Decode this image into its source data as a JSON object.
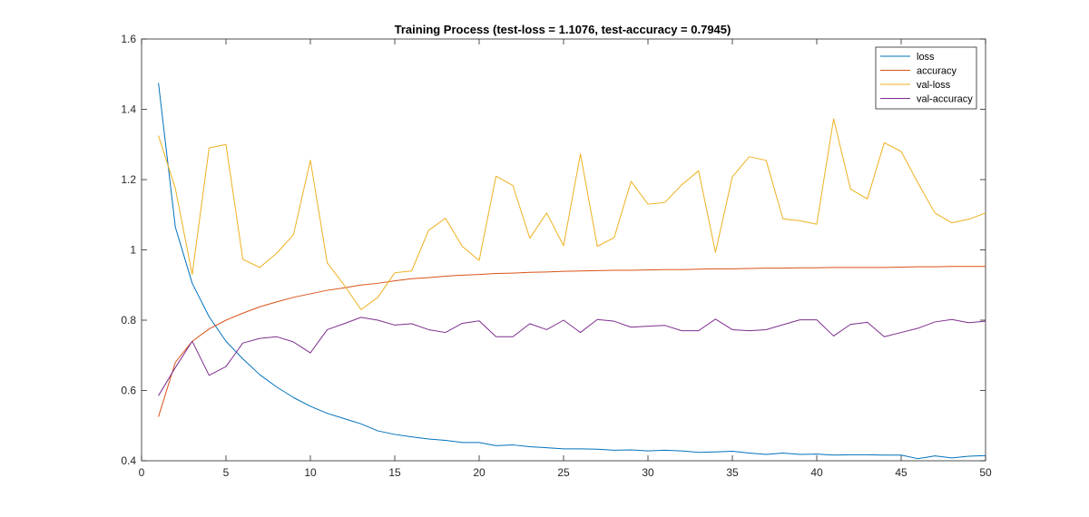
{
  "chart_data": {
    "type": "line",
    "title": "Training Process (test-loss = 1.1076, test-accuracy = 0.7945)",
    "xlabel": "",
    "ylabel": "",
    "xlim": [
      0,
      50
    ],
    "ylim": [
      0.4,
      1.6
    ],
    "xticks": [
      0,
      5,
      10,
      15,
      20,
      25,
      30,
      35,
      40,
      45,
      50
    ],
    "yticks": [
      0.4,
      0.6,
      0.8,
      1.0,
      1.2,
      1.4,
      1.6
    ],
    "xtick_labels": [
      "0",
      "5",
      "10",
      "15",
      "20",
      "25",
      "30",
      "35",
      "40",
      "45",
      "50"
    ],
    "ytick_labels": [
      "0.4",
      "0.6",
      "0.8",
      "1",
      "1.2",
      "1.4",
      "1.6"
    ],
    "grid": false,
    "legend_position": "top-right",
    "x": [
      1,
      2,
      3,
      4,
      5,
      6,
      7,
      8,
      9,
      10,
      11,
      12,
      13,
      14,
      15,
      16,
      17,
      18,
      19,
      20,
      21,
      22,
      23,
      24,
      25,
      26,
      27,
      28,
      29,
      30,
      31,
      32,
      33,
      34,
      35,
      36,
      37,
      38,
      39,
      40,
      41,
      42,
      43,
      44,
      45,
      46,
      47,
      48,
      49,
      50
    ],
    "series": [
      {
        "name": "loss",
        "color": "#0072BD",
        "values": [
          1.475,
          1.065,
          0.905,
          0.81,
          0.74,
          0.69,
          0.645,
          0.61,
          0.58,
          0.555,
          0.535,
          0.52,
          0.505,
          0.485,
          0.475,
          0.468,
          0.462,
          0.458,
          0.452,
          0.452,
          0.443,
          0.445,
          0.44,
          0.437,
          0.434,
          0.434,
          0.433,
          0.43,
          0.431,
          0.428,
          0.43,
          0.428,
          0.424,
          0.425,
          0.427,
          0.422,
          0.418,
          0.422,
          0.418,
          0.419,
          0.416,
          0.417,
          0.417,
          0.416,
          0.416,
          0.406,
          0.414,
          0.408,
          0.413,
          0.415
        ]
      },
      {
        "name": "accuracy",
        "color": "#D95319",
        "values": [
          0.525,
          0.68,
          0.74,
          0.775,
          0.8,
          0.82,
          0.838,
          0.852,
          0.865,
          0.875,
          0.885,
          0.892,
          0.9,
          0.905,
          0.912,
          0.918,
          0.921,
          0.925,
          0.928,
          0.93,
          0.933,
          0.934,
          0.936,
          0.937,
          0.939,
          0.94,
          0.941,
          0.942,
          0.942,
          0.943,
          0.944,
          0.944,
          0.945,
          0.946,
          0.946,
          0.947,
          0.948,
          0.948,
          0.949,
          0.949,
          0.95,
          0.95,
          0.95,
          0.95,
          0.951,
          0.952,
          0.952,
          0.953,
          0.953,
          0.953
        ]
      },
      {
        "name": "val-loss",
        "color": "#EDB120",
        "values": [
          1.325,
          1.175,
          0.93,
          1.29,
          1.3,
          0.973,
          0.95,
          0.99,
          1.043,
          1.255,
          0.963,
          0.9,
          0.83,
          0.865,
          0.935,
          0.94,
          1.055,
          1.09,
          1.01,
          0.97,
          1.21,
          1.183,
          1.033,
          1.105,
          1.012,
          1.273,
          1.01,
          1.035,
          1.195,
          1.13,
          1.135,
          1.185,
          1.225,
          0.993,
          1.208,
          1.265,
          1.255,
          1.088,
          1.083,
          1.073,
          1.373,
          1.173,
          1.145,
          1.305,
          1.28,
          1.19,
          1.105,
          1.077,
          1.087,
          1.105
        ]
      },
      {
        "name": "val-accuracy",
        "color": "#7E2F8E",
        "values": [
          0.585,
          0.665,
          0.74,
          0.643,
          0.668,
          0.735,
          0.748,
          0.753,
          0.738,
          0.707,
          0.773,
          0.79,
          0.808,
          0.8,
          0.786,
          0.79,
          0.773,
          0.765,
          0.791,
          0.798,
          0.753,
          0.753,
          0.79,
          0.773,
          0.8,
          0.765,
          0.802,
          0.797,
          0.78,
          0.783,
          0.785,
          0.77,
          0.77,
          0.803,
          0.773,
          0.77,
          0.773,
          0.787,
          0.801,
          0.801,
          0.755,
          0.788,
          0.794,
          0.753,
          0.765,
          0.777,
          0.795,
          0.802,
          0.793,
          0.797
        ]
      }
    ]
  }
}
